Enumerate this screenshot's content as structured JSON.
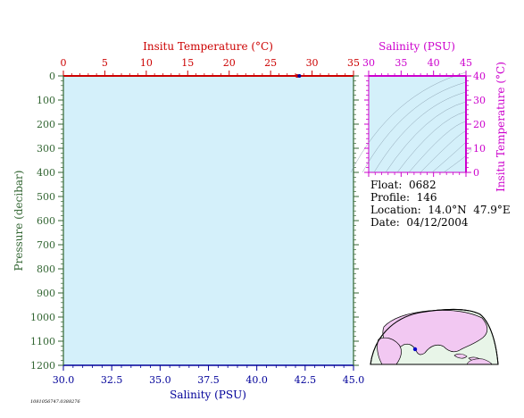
{
  "colors": {
    "panel_fill": "#d4f0fa",
    "temperature": "#cc0000",
    "salinity": "#000099",
    "pressure": "#336633",
    "ts_diagram": "#cc00cc",
    "map_land": "#f2c8f2",
    "map_sea": "#e8f5e8",
    "map_outline": "#000000"
  },
  "info": {
    "float": "Float:  0682",
    "profile": "Profile:  146",
    "location": "Location:  14.0°N  47.9°E",
    "date": "Date:  04/12/2004"
  },
  "stamp": "1081056747.0388276",
  "chart_data": [
    {
      "type": "line",
      "title": "",
      "xlabel_top": "Insitu Temperature (°C)",
      "xlabel_bottom": "Salinity (PSU)",
      "ylabel": "Pressure (decibar)",
      "temperature_range": [
        0,
        35
      ],
      "temperature_ticks": [
        "0",
        "5",
        "10",
        "15",
        "20",
        "25",
        "30",
        "35"
      ],
      "salinity_range": [
        30.0,
        45.0
      ],
      "salinity_ticks": [
        "30.0",
        "32.5",
        "35.0",
        "37.5",
        "40.0",
        "42.5",
        "45.0"
      ],
      "pressure_range": [
        0,
        1200
      ],
      "pressure_ticks": [
        "0",
        "100",
        "200",
        "300",
        "400",
        "500",
        "600",
        "700",
        "800",
        "900",
        "1000",
        "1100",
        "1200"
      ],
      "y_inverted": true,
      "series": [
        {
          "axis": "temperature",
          "points": [
            {
              "x": 28.2,
              "y": 0
            }
          ]
        },
        {
          "axis": "salinity",
          "points": [
            {
              "x": 42.2,
              "y": 0
            }
          ]
        }
      ],
      "grid": false
    },
    {
      "type": "scatter",
      "title": "",
      "xlabel": "Salinity (PSU)",
      "ylabel": "Insitu Temperature (°C)",
      "xlim": [
        30,
        45
      ],
      "ylim": [
        0,
        40
      ],
      "x_ticks": [
        "30",
        "35",
        "40",
        "45"
      ],
      "y_ticks": [
        "0",
        "10",
        "20",
        "30",
        "40"
      ],
      "density_contours": true,
      "series": []
    }
  ]
}
